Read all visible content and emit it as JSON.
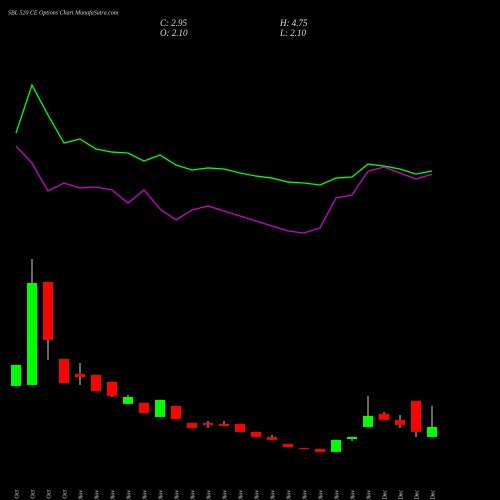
{
  "chart_data": {
    "type": "candlestick",
    "title": "SBL 520 CE Options Chart MunafaSutra.com",
    "annotations": [
      "C: 2.95",
      "H: 4.75",
      "O: 2.10",
      "L: 2.10"
    ],
    "categories": [
      "27 Oct",
      "29 Oct",
      "30 Oct",
      "31 Oct",
      "03 Nov",
      "04 Nov",
      "06 Nov",
      "07 Nov",
      "10 Nov",
      "11 Nov",
      "12 Nov",
      "13 Nov",
      "14 Nov",
      "17 Nov",
      "18 Nov",
      "19 Nov",
      "20 Nov",
      "21 Nov",
      "24 Nov",
      "25 Nov",
      "26 Nov",
      "27 Nov",
      "28 Nov",
      "01 Dec",
      "02 Dec",
      "03 Dec",
      "04 Dec"
    ],
    "open": [
      6.44,
      6.52,
      15.28,
      8.73,
      7.46,
      7.37,
      6.78,
      4.91,
      5.0,
      3.8,
      4.74,
      3.29,
      3.29,
      3.21,
      3.21,
      2.53,
      2.1,
      1.51,
      1.17,
      1.08,
      0.83,
      1.93,
      2.95,
      4.06,
      3.55,
      5.16,
      2.1
    ],
    "high": [
      8.22,
      17.23,
      15.28,
      8.73,
      8.39,
      7.37,
      6.78,
      5.67,
      5.0,
      5.25,
      4.74,
      3.29,
      3.46,
      3.46,
      3.21,
      2.53,
      2.27,
      1.51,
      1.17,
      1.08,
      1.85,
      2.1,
      5.59,
      4.23,
      3.97,
      5.16,
      4.75
    ],
    "low": [
      6.44,
      6.52,
      8.65,
      6.69,
      6.52,
      6.01,
      5.5,
      4.91,
      4.14,
      3.8,
      3.63,
      2.87,
      2.87,
      3.04,
      2.53,
      2.1,
      1.85,
      1.25,
      1.08,
      0.83,
      0.83,
      1.76,
      2.95,
      3.55,
      2.87,
      2.1,
      2.1
    ],
    "close": [
      8.22,
      15.19,
      10.35,
      6.69,
      7.2,
      6.01,
      5.59,
      5.5,
      4.14,
      5.25,
      3.63,
      2.87,
      3.12,
      3.04,
      2.53,
      2.1,
      1.85,
      1.25,
      1.08,
      0.83,
      1.85,
      2.1,
      3.89,
      3.55,
      3.12,
      2.53,
      2.95
    ],
    "up_color": "#00ff00",
    "down_color": "#ff0000",
    "series": [
      {
        "color": "#00ff00",
        "values": [
          27.94,
          32.02,
          29.47,
          27.09,
          27.43,
          26.58,
          26.32,
          26.24,
          25.56,
          26.07,
          25.22,
          24.8,
          24.97,
          24.88,
          24.54,
          24.28,
          24.11,
          23.77,
          23.69,
          23.52,
          24.11,
          24.2,
          25.3,
          25.13,
          24.88,
          24.45,
          24.71
        ]
      },
      {
        "color": "#cc00cc",
        "values": [
          26.83,
          25.39,
          23.01,
          23.69,
          23.27,
          23.35,
          23.1,
          21.99,
          23.1,
          21.48,
          20.55,
          21.4,
          21.74,
          21.31,
          20.89,
          20.46,
          20.04,
          19.61,
          19.44,
          19.87,
          22.42,
          22.67,
          24.71,
          25.05,
          24.54,
          24.03,
          24.45
        ]
      }
    ],
    "ylim": [
      -3.26,
      39.25
    ]
  }
}
